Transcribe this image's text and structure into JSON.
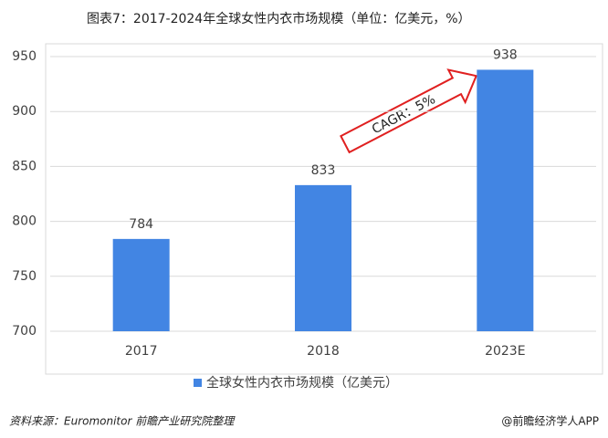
{
  "chart_data": {
    "type": "bar",
    "title": "图表7：2017-2024年全球女性内衣市场规模（单位：亿美元，%）",
    "categories": [
      "2017",
      "2018",
      "2023E"
    ],
    "series": [
      {
        "name": "全球女性内衣市场规模（亿美元）",
        "color": "#4285e3",
        "values": [
          784,
          833,
          938
        ]
      }
    ],
    "ylim": [
      700,
      950
    ],
    "yticks": [
      700,
      750,
      800,
      850,
      900,
      950
    ],
    "grid": true,
    "annotation": "CAGR：5%",
    "source": "资料来源：Euromonitor 前瞻产业研究院整理",
    "footer": "@前瞻经济学人APP"
  }
}
